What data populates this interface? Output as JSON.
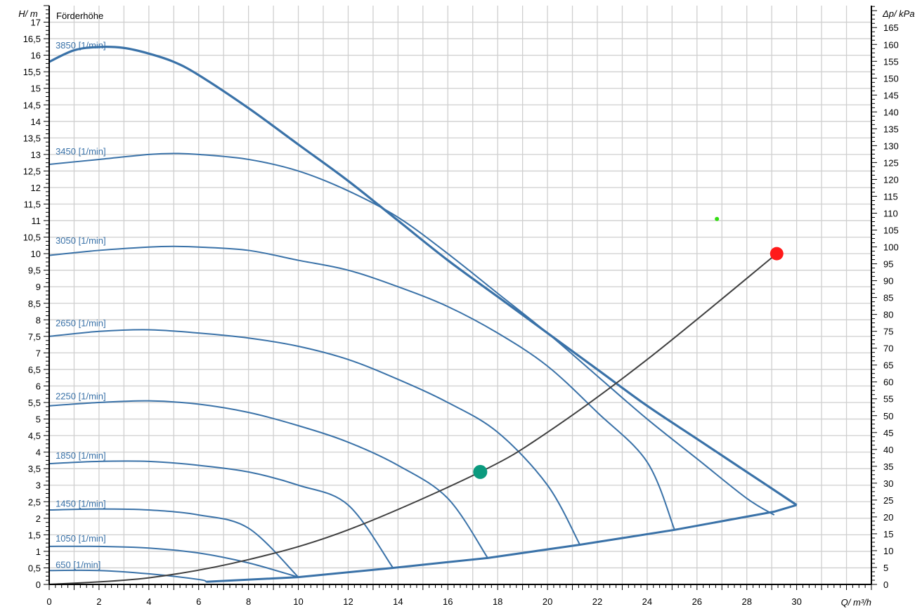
{
  "chart_data": {
    "type": "line",
    "title": "Förderhöhe",
    "ylabel_left": "H/ m",
    "ylabel_right": "Δp/ kPa",
    "xlabel": "Q/ m³/h",
    "xlim": [
      0,
      33
    ],
    "ylim_left": [
      0,
      17.5
    ],
    "ylim_right": [
      0,
      171.5
    ],
    "x_ticks": [
      0,
      2,
      4,
      6,
      8,
      10,
      12,
      14,
      16,
      18,
      20,
      22,
      24,
      26,
      28,
      30
    ],
    "y_left_ticks": [
      "0",
      "0,5",
      "1",
      "1,5",
      "2",
      "2,5",
      "3",
      "3,5",
      "4",
      "4,5",
      "5",
      "5,5",
      "6",
      "6,5",
      "7",
      "7,5",
      "8",
      "8,5",
      "9",
      "9,5",
      "10",
      "10,5",
      "11",
      "11,5",
      "12",
      "12,5",
      "13",
      "13,5",
      "14",
      "14,5",
      "15",
      "15,5",
      "16",
      "16,5",
      "17"
    ],
    "y_right_ticks": [
      0,
      5,
      10,
      15,
      20,
      25,
      30,
      35,
      40,
      45,
      50,
      55,
      60,
      65,
      70,
      75,
      80,
      85,
      90,
      95,
      100,
      105,
      110,
      115,
      120,
      125,
      130,
      135,
      140,
      145,
      150,
      155,
      160,
      165
    ],
    "grid": true,
    "series": [
      {
        "name": "3850 [1/min]",
        "label_at": [
          0.2,
          16.2
        ],
        "x": [
          0,
          1,
          2,
          3,
          4,
          5,
          6,
          8,
          10,
          12,
          14,
          16,
          18,
          20,
          22,
          24,
          26,
          28,
          30
        ],
        "y": [
          15.8,
          16.15,
          16.25,
          16.22,
          16.05,
          15.8,
          15.4,
          14.4,
          13.3,
          12.2,
          11.0,
          9.8,
          8.7,
          7.6,
          6.5,
          5.4,
          4.4,
          3.4,
          2.4
        ]
      },
      {
        "name": "3450 [1/min]",
        "label_at": [
          0.2,
          13.0
        ],
        "x": [
          0,
          2,
          4,
          5,
          6,
          8,
          10,
          12,
          14,
          16,
          18,
          20,
          22,
          24,
          26,
          28,
          29.1
        ],
        "y": [
          12.7,
          12.85,
          13.0,
          13.03,
          13.0,
          12.85,
          12.5,
          11.9,
          11.1,
          10.0,
          8.8,
          7.6,
          6.3,
          5.0,
          3.8,
          2.6,
          2.1
        ]
      },
      {
        "name": "3050 [1/min]",
        "label_at": [
          0.2,
          10.3
        ],
        "x": [
          0,
          2,
          4,
          5,
          6,
          8,
          10,
          12,
          14,
          16,
          18,
          20,
          22,
          24,
          25.1
        ],
        "y": [
          9.95,
          10.1,
          10.2,
          10.22,
          10.2,
          10.1,
          9.8,
          9.5,
          9.0,
          8.4,
          7.6,
          6.6,
          5.2,
          3.7,
          1.65
        ]
      },
      {
        "name": "2650 [1/min]",
        "label_at": [
          0.2,
          7.8
        ],
        "x": [
          0,
          2,
          4,
          6,
          8,
          10,
          12,
          14,
          16,
          18,
          20,
          21.3
        ],
        "y": [
          7.5,
          7.65,
          7.7,
          7.6,
          7.45,
          7.2,
          6.8,
          6.2,
          5.5,
          4.6,
          3.0,
          1.2
        ]
      },
      {
        "name": "2250 [1/min]",
        "label_at": [
          0.2,
          5.6
        ],
        "x": [
          0,
          2,
          4,
          6,
          8,
          10,
          12,
          14,
          16,
          17.6
        ],
        "y": [
          5.4,
          5.5,
          5.55,
          5.45,
          5.2,
          4.8,
          4.3,
          3.6,
          2.6,
          0.8
        ]
      },
      {
        "name": "1850 [1/min]",
        "label_at": [
          0.2,
          3.8
        ],
        "x": [
          0,
          2,
          4,
          6,
          8,
          10,
          12,
          13.8
        ],
        "y": [
          3.65,
          3.72,
          3.72,
          3.6,
          3.4,
          3.0,
          2.4,
          0.5
        ]
      },
      {
        "name": "1450 [1/min]",
        "label_at": [
          0.2,
          2.35
        ],
        "x": [
          0,
          2,
          4,
          6,
          8,
          10
        ],
        "y": [
          2.25,
          2.28,
          2.25,
          2.1,
          1.7,
          0.22
        ]
      },
      {
        "name": "1050 [1/min]",
        "label_at": [
          0.2,
          1.3
        ],
        "x": [
          0,
          2,
          4,
          6,
          8,
          10
        ],
        "y": [
          1.15,
          1.15,
          1.1,
          0.95,
          0.65,
          0.22
        ]
      },
      {
        "name": "650 [1/min]",
        "label_at": [
          0.2,
          0.5
        ],
        "x": [
          0,
          2,
          4,
          6,
          6.3
        ],
        "y": [
          0.42,
          0.42,
          0.32,
          0.15,
          0.08
        ]
      }
    ],
    "limit_line": {
      "x": [
        6.3,
        10,
        13.8,
        17.6,
        21.3,
        25.1,
        29.1,
        30
      ],
      "y": [
        0.08,
        0.22,
        0.5,
        0.8,
        1.2,
        1.65,
        2.2,
        2.4
      ]
    },
    "system_curve": {
      "x": [
        0,
        4,
        8,
        12,
        17.3,
        20,
        24,
        29.2
      ],
      "y": [
        0,
        0.2,
        0.75,
        1.65,
        3.4,
        4.6,
        6.8,
        10.0
      ]
    },
    "operating_point": {
      "x": 17.3,
      "y": 3.4,
      "color": "#0b9a7e"
    },
    "design_point": {
      "x": 29.2,
      "y": 10.0,
      "color": "#ff1a1a"
    },
    "marker_point": {
      "x": 26.8,
      "y": 11.05,
      "color": "#33dd11"
    },
    "colors": {
      "curve": "#3a72a8",
      "grid": "#cfcfcf",
      "system": "#404040",
      "axis": "#000000"
    }
  }
}
